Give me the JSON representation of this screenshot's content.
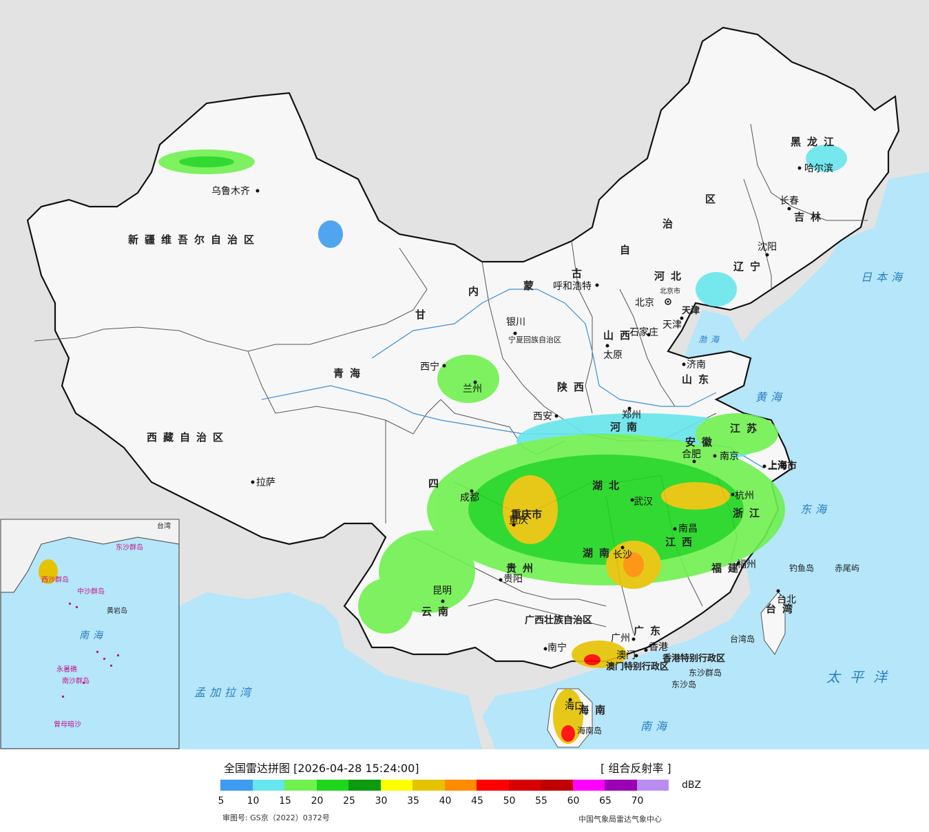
{
  "title": "全国雷达拼图",
  "timestamp": "[2026-04-28 15:24:00]",
  "product": "[ 组合反射率 ]",
  "unit": "dBZ",
  "approval_number": "审图号: GS京（2022）0372号",
  "organization": "中国气象局雷达气象中心",
  "legend": {
    "colors": [
      "#3d9bf0",
      "#66e6ec",
      "#70f150",
      "#1ed61e",
      "#0d9a10",
      "#ffff00",
      "#e6c300",
      "#ff8c00",
      "#ff0000",
      "#d60000",
      "#c00000",
      "#ff00ff",
      "#9a00b4",
      "#b98df0"
    ],
    "ticks": [
      "5",
      "10",
      "15",
      "20",
      "25",
      "30",
      "35",
      "40",
      "45",
      "50",
      "55",
      "60",
      "65",
      "70"
    ]
  },
  "provinces": {
    "xinjiang": "新疆维吾尔自治区",
    "tibet": "西藏自治区",
    "qinghai": "青海",
    "gansu": "甘",
    "sichuan": "四",
    "yunnan": "云南",
    "guizhou": "贵州",
    "guangxi": "广西壮族自治区",
    "guangdong": "广东",
    "hainan": "海南",
    "neimenggu": [
      "内",
      "蒙",
      "古",
      "自",
      "治",
      "区"
    ],
    "heilongjiang": "黑龙江",
    "jilin": "吉林",
    "liaoning": "辽宁",
    "hebei": "河北",
    "shanxi": "山西",
    "shaanxi": "陕西",
    "henan": "河南",
    "shandong": "山东",
    "jiangsu": "江苏",
    "anhui": "安徽",
    "hubei": "湖北",
    "hunan": "湖南",
    "jiangxi": "江西",
    "zhejiang": "浙江",
    "fujian": "福建",
    "taiwan": "台湾",
    "chongqing": "重庆市",
    "shanghai": "上海市",
    "ningxia": "宁夏回族自治区",
    "tianjin": "天津",
    "beijing": "北京市",
    "hongkong": "香港特别行政区",
    "macao": "澳门特别行政区"
  },
  "cities": [
    "乌鲁木齐",
    "拉萨",
    "西宁",
    "兰州",
    "银川",
    "呼和浩特",
    "北京",
    "天津",
    "石家庄",
    "太原",
    "济南",
    "郑州",
    "西安",
    "成都",
    "重庆",
    "贵阳",
    "昆明",
    "南宁",
    "广州",
    "香港",
    "澳门",
    "海口",
    "长沙",
    "南昌",
    "福州",
    "台北",
    "杭州",
    "上海",
    "南京",
    "合肥",
    "武汉",
    "沈阳",
    "长春",
    "哈尔滨"
  ],
  "seas": {
    "japan": "日本海",
    "yellow": "黄海",
    "bohai": "渤海",
    "east": "东海",
    "south": "南海",
    "pacific": "太平洋",
    "bengal": "孟加拉湾"
  },
  "islands": {
    "diaoyu": "钓鱼岛",
    "chiwei": "赤尾屿",
    "dongsha": "东沙群岛",
    "dongsha_dao": "东沙岛",
    "hainan_dao": "海南岛",
    "taiwan_dao": "台湾岛"
  },
  "inset": {
    "south_sea": "南海",
    "xisha": "西沙群岛",
    "zhongsha": "中沙群岛",
    "huangyan": "黄岩岛",
    "nansha": "南沙群岛",
    "yongshu": "永暑礁",
    "zengmu": "曾母暗沙",
    "dongsha": "东沙群岛",
    "taiwan": "台湾"
  }
}
